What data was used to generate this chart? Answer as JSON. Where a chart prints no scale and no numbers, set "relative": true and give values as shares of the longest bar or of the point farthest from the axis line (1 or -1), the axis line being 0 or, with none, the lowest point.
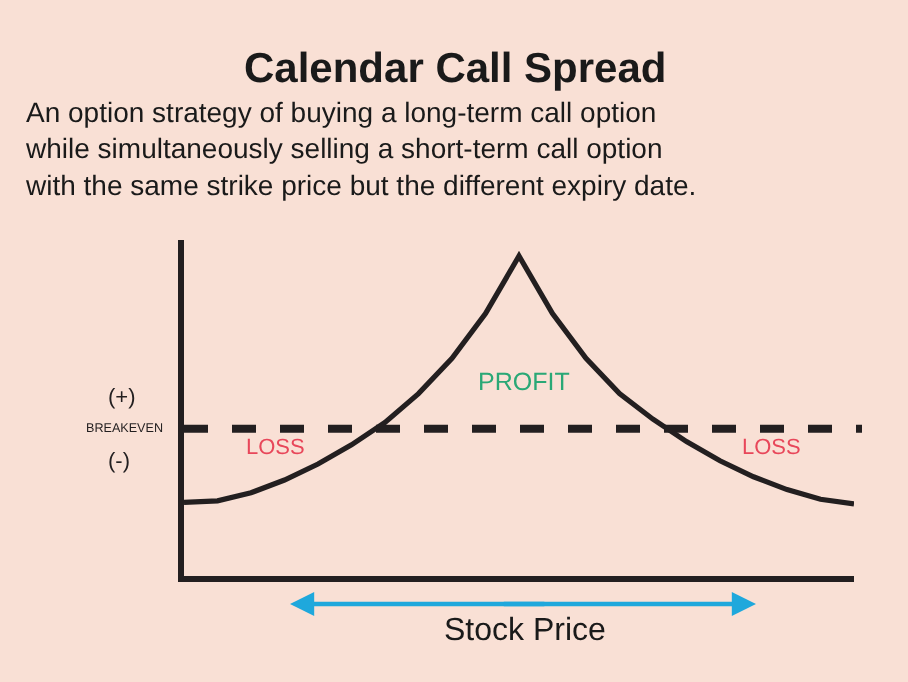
{
  "chart_data": {
    "type": "line",
    "relative": true,
    "title": "Calendar Call Spread",
    "subtitle": "An option strategy of buying a long-term call option while simultaneously selling a short-term call option with the same strike price but the different expiry date.",
    "xlabel": "Stock Price",
    "categories": [
      null,
      null,
      null,
      null,
      null,
      null,
      null,
      null,
      null,
      null,
      null,
      null,
      null,
      null,
      null,
      null,
      null,
      null,
      null,
      null,
      null
    ],
    "series": [
      {
        "color": "#231f20",
        "values": [
          0.23,
          0.235,
          0.26,
          0.3,
          0.35,
          0.41,
          0.48,
          0.57,
          0.68,
          0.82,
          1,
          0.82,
          0.68,
          0.57,
          0.49,
          0.42,
          0.36,
          0.31,
          0.27,
          0.24,
          0.225
        ]
      }
    ],
    "ref_lines": [
      {
        "axis": "y",
        "value": 0.46,
        "label": "BREAKEVEN",
        "color": "#231f20",
        "line_style": "dashed"
      }
    ],
    "annotations": [
      "(+)",
      "(-)",
      "PROFIT",
      "LOSS",
      "LOSS"
    ],
    "marker": "none",
    "line_style": "solid",
    "grid": false
  }
}
